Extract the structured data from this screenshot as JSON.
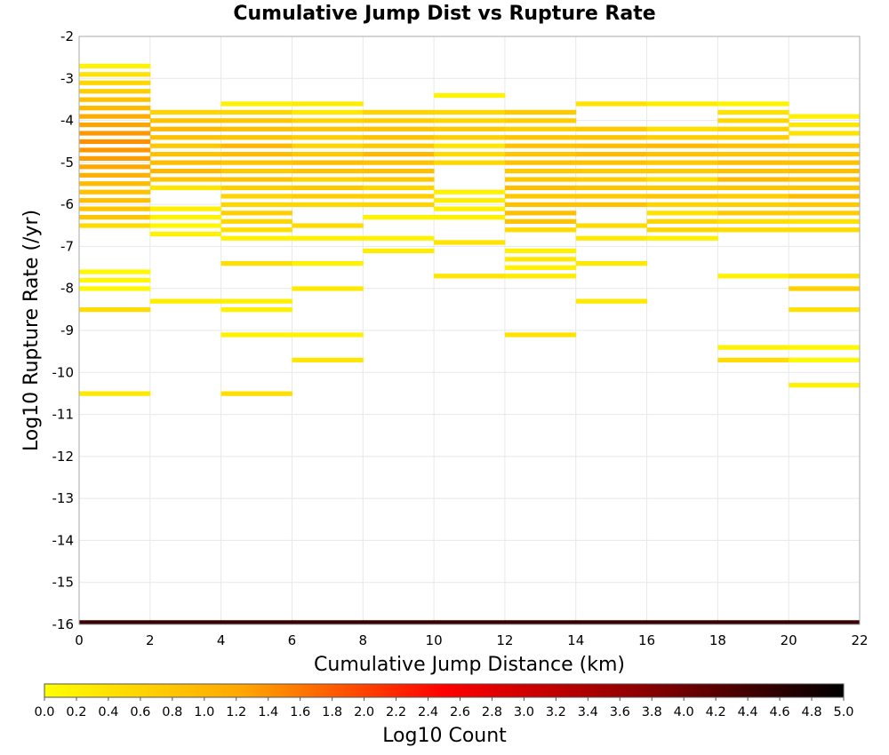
{
  "chart_data": {
    "type": "heatmap",
    "title": "Cumulative Jump Dist vs Rupture Rate",
    "xlabel": "Cumulative Jump Distance (km)",
    "ylabel": "Log10 Rupture Rate (/yr)",
    "xlim": [
      0,
      22
    ],
    "ylim": [
      -16,
      -2
    ],
    "x_bin_width": 2,
    "y_bin_width": 0.1,
    "xticks": [
      "0",
      "2",
      "4",
      "6",
      "8",
      "10",
      "12",
      "14",
      "16",
      "18",
      "20",
      "22"
    ],
    "yticks": [
      "-2",
      "-3",
      "-4",
      "-5",
      "-6",
      "-7",
      "-8",
      "-9",
      "-10",
      "-11",
      "-12",
      "-13",
      "-14",
      "-15",
      "-16"
    ],
    "grid": true,
    "colorbar": {
      "label": "Log10 Count",
      "range": [
        0,
        5
      ],
      "ticks": [
        "0.0",
        "0.2",
        "0.4",
        "0.6",
        "0.8",
        "1.0",
        "1.2",
        "1.4",
        "1.6",
        "1.8",
        "2.0",
        "2.2",
        "2.4",
        "2.6",
        "2.8",
        "3.0",
        "3.2",
        "3.4",
        "3.6",
        "3.8",
        "4.0",
        "4.2",
        "4.4",
        "4.6",
        "4.8",
        "5.0"
      ],
      "colors": [
        "#ffff00",
        "#ffa500",
        "#ff0000",
        "#8b0000",
        "#000000"
      ]
    },
    "cells": [
      [
        0,
        -2.7,
        0.15
      ],
      [
        0,
        -2.9,
        0.4
      ],
      [
        0,
        -3.1,
        0.55
      ],
      [
        0,
        -3.3,
        0.7
      ],
      [
        0,
        -3.5,
        0.85
      ],
      [
        0,
        -3.7,
        0.95
      ],
      [
        0,
        -3.9,
        1.15
      ],
      [
        0,
        -4.1,
        1.25
      ],
      [
        0,
        -4.3,
        1.35
      ],
      [
        0,
        -4.5,
        1.4
      ],
      [
        0,
        -4.7,
        1.35
      ],
      [
        0,
        -4.9,
        1.3
      ],
      [
        0,
        -5.1,
        1.2
      ],
      [
        0,
        -5.3,
        1.1
      ],
      [
        0,
        -5.5,
        0.95
      ],
      [
        0,
        -5.7,
        0.85
      ],
      [
        0,
        -5.9,
        0.9
      ],
      [
        0,
        -6.1,
        0.8
      ],
      [
        0,
        -6.3,
        0.8
      ],
      [
        0,
        -6.5,
        0.5
      ],
      [
        0,
        -7.6,
        0.1
      ],
      [
        0,
        -7.8,
        0.1
      ],
      [
        0,
        -8.0,
        0.1
      ],
      [
        0,
        -8.5,
        0.5
      ],
      [
        0,
        -10.5,
        0.3
      ],
      [
        2,
        -3.8,
        0.6
      ],
      [
        2,
        -4.0,
        0.85
      ],
      [
        2,
        -4.2,
        1.0
      ],
      [
        2,
        -4.4,
        0.85
      ],
      [
        2,
        -4.6,
        0.75
      ],
      [
        2,
        -4.8,
        0.85
      ],
      [
        2,
        -5.0,
        0.9
      ],
      [
        2,
        -5.2,
        1.0
      ],
      [
        2,
        -5.4,
        0.8
      ],
      [
        2,
        -5.6,
        0.35
      ],
      [
        2,
        -6.1,
        0.2
      ],
      [
        2,
        -6.3,
        0.15
      ],
      [
        2,
        -6.5,
        0.1
      ],
      [
        2,
        -6.7,
        0.2
      ],
      [
        2,
        -8.3,
        0.25
      ],
      [
        4,
        -3.6,
        0.2
      ],
      [
        4,
        -3.8,
        0.55
      ],
      [
        4,
        -4.0,
        0.8
      ],
      [
        4,
        -4.2,
        0.9
      ],
      [
        4,
        -4.4,
        0.8
      ],
      [
        4,
        -4.6,
        1.0
      ],
      [
        4,
        -4.8,
        0.95
      ],
      [
        4,
        -5.0,
        0.8
      ],
      [
        4,
        -5.2,
        0.75
      ],
      [
        4,
        -5.4,
        0.85
      ],
      [
        4,
        -5.6,
        0.65
      ],
      [
        4,
        -5.8,
        0.6
      ],
      [
        4,
        -6.0,
        0.55
      ],
      [
        4,
        -6.2,
        0.65
      ],
      [
        4,
        -6.4,
        0.55
      ],
      [
        4,
        -6.6,
        0.45
      ],
      [
        4,
        -6.8,
        0.2
      ],
      [
        4,
        -7.4,
        0.45
      ],
      [
        4,
        -8.3,
        0.2
      ],
      [
        4,
        -8.5,
        0.2
      ],
      [
        4,
        -9.1,
        0.2
      ],
      [
        4,
        -10.5,
        0.45
      ],
      [
        6,
        -3.6,
        0.25
      ],
      [
        6,
        -3.8,
        0.3
      ],
      [
        6,
        -4.0,
        0.6
      ],
      [
        6,
        -4.2,
        0.8
      ],
      [
        6,
        -4.4,
        0.7
      ],
      [
        6,
        -4.6,
        0.6
      ],
      [
        6,
        -4.8,
        0.75
      ],
      [
        6,
        -5.0,
        0.9
      ],
      [
        6,
        -5.2,
        0.85
      ],
      [
        6,
        -5.4,
        0.6
      ],
      [
        6,
        -5.6,
        0.75
      ],
      [
        6,
        -5.8,
        0.7
      ],
      [
        6,
        -6.0,
        0.55
      ],
      [
        6,
        -6.5,
        0.5
      ],
      [
        6,
        -6.8,
        0.2
      ],
      [
        6,
        -7.4,
        0.2
      ],
      [
        6,
        -8.0,
        0.3
      ],
      [
        6,
        -9.1,
        0.2
      ],
      [
        6,
        -9.7,
        0.35
      ],
      [
        8,
        -3.8,
        0.6
      ],
      [
        8,
        -4.0,
        0.7
      ],
      [
        8,
        -4.2,
        0.85
      ],
      [
        8,
        -4.4,
        0.85
      ],
      [
        8,
        -4.6,
        0.75
      ],
      [
        8,
        -4.8,
        1.0
      ],
      [
        8,
        -5.0,
        0.85
      ],
      [
        8,
        -5.2,
        0.9
      ],
      [
        8,
        -5.4,
        0.75
      ],
      [
        8,
        -5.6,
        0.55
      ],
      [
        8,
        -5.8,
        0.65
      ],
      [
        8,
        -6.0,
        0.6
      ],
      [
        8,
        -6.3,
        0.15
      ],
      [
        8,
        -6.8,
        0.2
      ],
      [
        8,
        -7.1,
        0.25
      ],
      [
        10,
        -3.4,
        0.15
      ],
      [
        10,
        -3.8,
        0.55
      ],
      [
        10,
        -4.0,
        0.55
      ],
      [
        10,
        -4.2,
        0.75
      ],
      [
        10,
        -4.4,
        0.65
      ],
      [
        10,
        -4.6,
        0.35
      ],
      [
        10,
        -4.8,
        0.5
      ],
      [
        10,
        -5.0,
        0.55
      ],
      [
        10,
        -5.7,
        0.2
      ],
      [
        10,
        -5.9,
        0.25
      ],
      [
        10,
        -6.1,
        0.2
      ],
      [
        10,
        -6.3,
        0.2
      ],
      [
        10,
        -6.9,
        0.4
      ],
      [
        10,
        -7.7,
        0.35
      ],
      [
        12,
        -3.8,
        0.75
      ],
      [
        12,
        -4.0,
        0.7
      ],
      [
        12,
        -4.2,
        0.65
      ],
      [
        12,
        -4.4,
        0.8
      ],
      [
        12,
        -4.6,
        0.85
      ],
      [
        12,
        -4.8,
        0.8
      ],
      [
        12,
        -5.0,
        0.85
      ],
      [
        12,
        -5.2,
        0.75
      ],
      [
        12,
        -5.4,
        0.75
      ],
      [
        12,
        -5.6,
        0.9
      ],
      [
        12,
        -5.8,
        0.75
      ],
      [
        12,
        -6.0,
        0.85
      ],
      [
        12,
        -6.2,
        0.9
      ],
      [
        12,
        -6.4,
        0.85
      ],
      [
        12,
        -6.6,
        0.5
      ],
      [
        12,
        -7.1,
        0.2
      ],
      [
        12,
        -7.3,
        0.3
      ],
      [
        12,
        -7.5,
        0.2
      ],
      [
        12,
        -7.7,
        0.25
      ],
      [
        12,
        -9.1,
        0.4
      ],
      [
        14,
        -3.6,
        0.4
      ],
      [
        14,
        -4.2,
        0.75
      ],
      [
        14,
        -4.4,
        0.8
      ],
      [
        14,
        -4.6,
        0.9
      ],
      [
        14,
        -4.8,
        0.95
      ],
      [
        14,
        -5.0,
        0.85
      ],
      [
        14,
        -5.2,
        0.75
      ],
      [
        14,
        -5.4,
        0.7
      ],
      [
        14,
        -5.6,
        0.8
      ],
      [
        14,
        -5.8,
        0.75
      ],
      [
        14,
        -6.0,
        0.85
      ],
      [
        14,
        -6.5,
        0.5
      ],
      [
        14,
        -6.8,
        0.3
      ],
      [
        14,
        -7.4,
        0.3
      ],
      [
        14,
        -8.3,
        0.3
      ],
      [
        16,
        -3.6,
        0.25
      ],
      [
        16,
        -4.2,
        0.45
      ],
      [
        16,
        -4.4,
        0.7
      ],
      [
        16,
        -4.6,
        0.95
      ],
      [
        16,
        -4.8,
        0.85
      ],
      [
        16,
        -5.0,
        0.75
      ],
      [
        16,
        -5.2,
        0.75
      ],
      [
        16,
        -5.4,
        0.45
      ],
      [
        16,
        -5.6,
        0.75
      ],
      [
        16,
        -5.8,
        0.8
      ],
      [
        16,
        -6.0,
        0.6
      ],
      [
        16,
        -6.2,
        0.4
      ],
      [
        16,
        -6.4,
        0.6
      ],
      [
        16,
        -6.6,
        0.55
      ],
      [
        16,
        -6.8,
        0.2
      ],
      [
        18,
        -3.6,
        0.15
      ],
      [
        18,
        -3.8,
        0.4
      ],
      [
        18,
        -4.0,
        0.55
      ],
      [
        18,
        -4.2,
        0.6
      ],
      [
        18,
        -4.4,
        0.7
      ],
      [
        18,
        -4.6,
        0.85
      ],
      [
        18,
        -4.8,
        0.8
      ],
      [
        18,
        -5.0,
        0.9
      ],
      [
        18,
        -5.2,
        0.85
      ],
      [
        18,
        -5.4,
        1.0
      ],
      [
        18,
        -5.6,
        0.8
      ],
      [
        18,
        -5.8,
        0.7
      ],
      [
        18,
        -6.0,
        0.65
      ],
      [
        18,
        -6.2,
        0.75
      ],
      [
        18,
        -6.4,
        0.45
      ],
      [
        18,
        -6.6,
        0.5
      ],
      [
        18,
        -7.7,
        0.2
      ],
      [
        18,
        -9.4,
        0.15
      ],
      [
        18,
        -9.7,
        0.5
      ],
      [
        20,
        -3.9,
        0.2
      ],
      [
        20,
        -4.1,
        0.35
      ],
      [
        20,
        -4.3,
        0.4
      ],
      [
        20,
        -4.6,
        0.75
      ],
      [
        20,
        -4.8,
        0.8
      ],
      [
        20,
        -5.0,
        0.85
      ],
      [
        20,
        -5.2,
        0.9
      ],
      [
        20,
        -5.4,
        0.85
      ],
      [
        20,
        -5.6,
        0.8
      ],
      [
        20,
        -5.8,
        0.95
      ],
      [
        20,
        -6.0,
        0.75
      ],
      [
        20,
        -6.2,
        0.7
      ],
      [
        20,
        -6.4,
        0.4
      ],
      [
        20,
        -6.6,
        0.5
      ],
      [
        20,
        -7.7,
        0.45
      ],
      [
        20,
        -8.0,
        0.65
      ],
      [
        20,
        -8.5,
        0.4
      ],
      [
        20,
        -9.4,
        0.1
      ],
      [
        20,
        -9.7,
        0.1
      ],
      [
        20,
        -10.3,
        0.2
      ],
      [
        0,
        -15.95,
        4.5
      ],
      [
        2,
        -15.95,
        4.5
      ],
      [
        4,
        -15.95,
        4.5
      ],
      [
        6,
        -15.95,
        4.5
      ],
      [
        8,
        -15.95,
        4.5
      ],
      [
        10,
        -15.95,
        4.5
      ],
      [
        12,
        -15.95,
        4.5
      ],
      [
        14,
        -15.95,
        4.5
      ],
      [
        16,
        -15.95,
        4.5
      ],
      [
        18,
        -15.95,
        4.5
      ],
      [
        20,
        -15.95,
        4.5
      ]
    ]
  }
}
